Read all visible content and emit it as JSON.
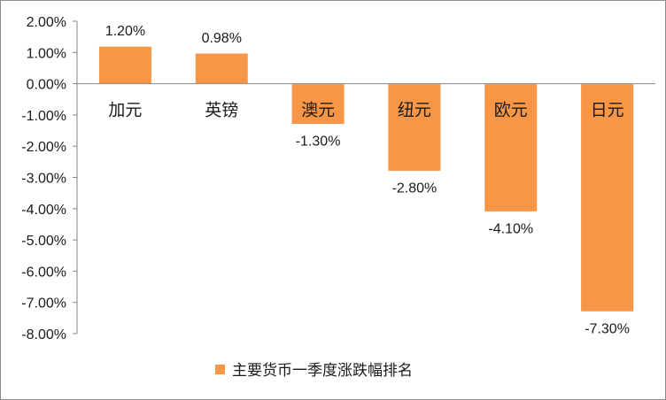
{
  "chart_data": {
    "type": "bar",
    "categories": [
      "加元",
      "英镑",
      "澳元",
      "纽元",
      "欧元",
      "日元"
    ],
    "series": [
      {
        "name": "主要货币一季度涨跌幅排名",
        "values": [
          1.2,
          0.98,
          -1.3,
          -2.8,
          -4.1,
          -7.3
        ],
        "labels": [
          "1.20%",
          "0.98%",
          "-1.30%",
          "-2.80%",
          "-4.10%",
          "-7.30%"
        ],
        "color": "#f79646"
      }
    ],
    "ylim": [
      -8,
      2
    ],
    "yticks": [
      2,
      1,
      0,
      -1,
      -2,
      -3,
      -4,
      -5,
      -6,
      -7,
      -8
    ],
    "ytick_labels": [
      "2.00%",
      "1.00%",
      "0.00%",
      "-1.00%",
      "-2.00%",
      "-3.00%",
      "-4.00%",
      "-5.00%",
      "-6.00%",
      "-7.00%",
      "-8.00%"
    ],
    "grid": false,
    "legend_position": "bottom"
  }
}
